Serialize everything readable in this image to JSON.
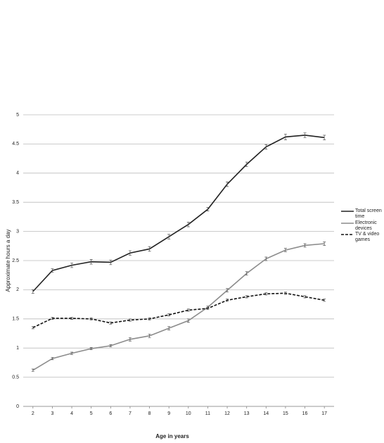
{
  "chart_data": {
    "type": "line",
    "x_label": "Age in years",
    "y_label": "Approximate hours a day",
    "x": [
      2,
      3,
      4,
      5,
      6,
      7,
      8,
      9,
      10,
      11,
      12,
      13,
      14,
      15,
      16,
      17
    ],
    "xlim": [
      1.5,
      17.5
    ],
    "xticks": [
      2,
      3,
      4,
      5,
      6,
      7,
      8,
      9,
      10,
      11,
      12,
      13,
      14,
      15,
      16,
      17
    ],
    "ylim": [
      0,
      5
    ],
    "yticks": [
      0,
      0.5,
      1,
      1.5,
      2,
      2.5,
      3,
      3.5,
      4,
      4.5,
      5
    ],
    "grid": true,
    "legend": "right",
    "series": [
      {
        "name": "Total screen time",
        "color": "#222222",
        "dash": false,
        "values": [
          1.97,
          2.33,
          2.42,
          2.48,
          2.47,
          2.63,
          2.7,
          2.91,
          3.12,
          3.38,
          3.81,
          4.15,
          4.45,
          4.62,
          4.65,
          4.61
        ],
        "errors": [
          0.03,
          0.03,
          0.04,
          0.04,
          0.04,
          0.04,
          0.04,
          0.04,
          0.04,
          0.03,
          0.04,
          0.04,
          0.04,
          0.05,
          0.04,
          0.04
        ]
      },
      {
        "name": "Electronic devices",
        "color": "#8c8c8c",
        "dash": false,
        "values": [
          0.62,
          0.82,
          0.91,
          0.99,
          1.04,
          1.15,
          1.21,
          1.34,
          1.47,
          1.7,
          1.99,
          2.28,
          2.53,
          2.68,
          2.76,
          2.79
        ],
        "errors": [
          0.02,
          0.02,
          0.02,
          0.02,
          0.02,
          0.03,
          0.03,
          0.03,
          0.03,
          0.02,
          0.03,
          0.03,
          0.03,
          0.03,
          0.03,
          0.03
        ]
      },
      {
        "name": "TV & video games",
        "color": "#111111",
        "dash": true,
        "values": [
          1.35,
          1.51,
          1.51,
          1.5,
          1.43,
          1.48,
          1.5,
          1.57,
          1.65,
          1.68,
          1.82,
          1.88,
          1.93,
          1.94,
          1.88,
          1.82
        ],
        "errors": [
          0.02,
          0.02,
          0.02,
          0.02,
          0.02,
          0.02,
          0.02,
          0.02,
          0.02,
          0.02,
          0.02,
          0.02,
          0.02,
          0.02,
          0.02,
          0.02
        ]
      }
    ]
  }
}
